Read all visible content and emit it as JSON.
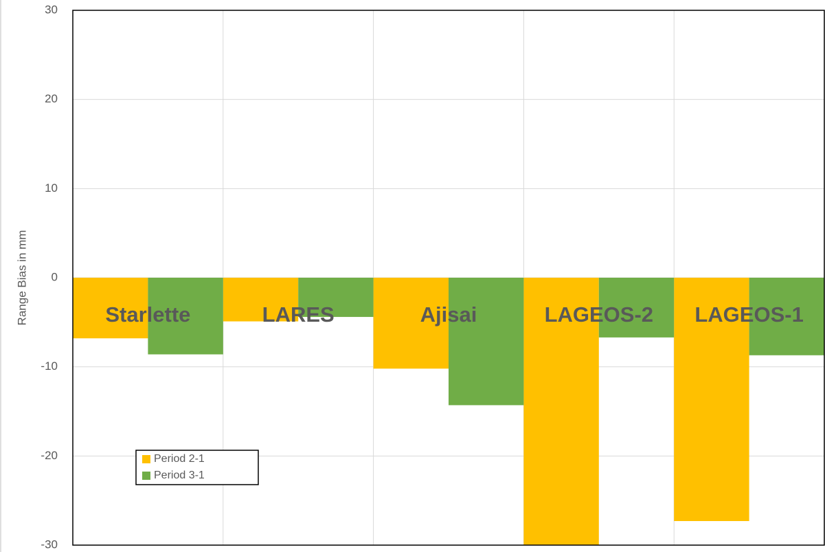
{
  "chart_data": {
    "type": "bar",
    "y_label": "Range Bias in mm",
    "categories": [
      "Starlette",
      "LARES",
      "Ajisai",
      "LAGEOS-2",
      "LAGEOS-1"
    ],
    "series": [
      {
        "name": "Period 2-1",
        "color": "#ffc000",
        "values": [
          -6.8,
          -4.9,
          -10.2,
          -30,
          -27.3
        ]
      },
      {
        "name": "Period 3-1",
        "color": "#70ad47",
        "values": [
          -8.6,
          -4.4,
          -14.3,
          -6.7,
          -8.7
        ]
      }
    ],
    "ylim": [
      -30,
      30
    ],
    "yticks": [
      -30,
      -20,
      -10,
      0,
      10,
      20,
      30
    ],
    "grid": true,
    "legend": "lower left"
  }
}
